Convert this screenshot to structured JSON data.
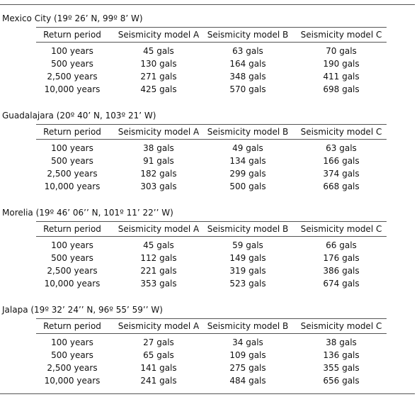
{
  "columns": [
    "Return period",
    "Seismicity model A",
    "Seismicity model B",
    "Seismicity model C"
  ],
  "sections": [
    {
      "title": "Mexico City (19º 26’ N, 99º 8’ W)",
      "rows": [
        [
          "100 years",
          "45 gals",
          "63 gals",
          "70 gals"
        ],
        [
          "500 years",
          "130 gals",
          "164 gals",
          "190 gals"
        ],
        [
          "2,500 years",
          "271 gals",
          "348 gals",
          "411 gals"
        ],
        [
          "10,000 years",
          "425 gals",
          "570 gals",
          "698 gals"
        ]
      ]
    },
    {
      "title": "Guadalajara (20º 40’ N, 103º 21’ W)",
      "rows": [
        [
          "100 years",
          "38 gals",
          "49 gals",
          "63 gals"
        ],
        [
          "500 years",
          "91 gals",
          "134 gals",
          "166 gals"
        ],
        [
          "2,500 years",
          "182 gals",
          "299 gals",
          "374 gals"
        ],
        [
          "10,000 years",
          "303 gals",
          "500 gals",
          "668 gals"
        ]
      ]
    },
    {
      "title": "Morelia (19º 46’ 06’’ N, 101º 11’ 22’’ W)",
      "rows": [
        [
          "100 years",
          "45 gals",
          "59 gals",
          "66 gals"
        ],
        [
          "500 years",
          "112 gals",
          "149 gals",
          "176 gals"
        ],
        [
          "2,500 years",
          "221 gals",
          "319 gals",
          "386 gals"
        ],
        [
          "10,000 years",
          "353 gals",
          "523 gals",
          "674 gals"
        ]
      ]
    },
    {
      "title": "Jalapa (19º 32’ 24’’ N, 96º 55’ 59’’ W)",
      "rows": [
        [
          "100 years",
          "27 gals",
          "34 gals",
          "38 gals"
        ],
        [
          "500 years",
          "65 gals",
          "109 gals",
          "136 gals"
        ],
        [
          "2,500 years",
          "141 gals",
          "275 gals",
          "355 gals"
        ],
        [
          "10,000 years",
          "241 gals",
          "484 gals",
          "656 gals"
        ]
      ]
    }
  ]
}
